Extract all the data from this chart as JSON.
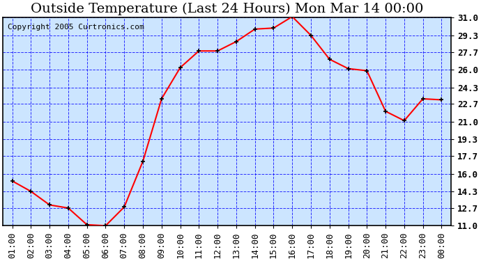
{
  "title": "Outside Temperature (Last 24 Hours) Mon Mar 14 00:00",
  "copyright": "Copyright 2005 Curtronics.com",
  "x_labels": [
    "01:00",
    "02:00",
    "03:00",
    "04:00",
    "05:00",
    "06:00",
    "07:00",
    "08:00",
    "09:00",
    "10:00",
    "11:00",
    "12:00",
    "13:00",
    "14:00",
    "15:00",
    "16:00",
    "17:00",
    "18:00",
    "19:00",
    "20:00",
    "21:00",
    "22:00",
    "23:00",
    "00:00"
  ],
  "y_values": [
    15.3,
    14.3,
    13.0,
    12.7,
    11.1,
    11.0,
    12.8,
    17.2,
    23.2,
    26.2,
    27.8,
    27.8,
    28.7,
    29.9,
    30.0,
    31.1,
    29.3,
    27.0,
    26.1,
    25.9,
    22.0,
    21.1,
    23.2,
    23.1
  ],
  "y_ticks": [
    11.0,
    12.7,
    14.3,
    16.0,
    17.7,
    19.3,
    21.0,
    22.7,
    24.3,
    26.0,
    27.7,
    29.3,
    31.0
  ],
  "y_min": 11.0,
  "y_max": 31.0,
  "line_color": "red",
  "marker": "+",
  "marker_color": "black",
  "bg_color": "#cce5ff",
  "plot_bg_color": "#cce5ff",
  "grid_color": "blue",
  "title_fontsize": 14,
  "copyright_fontsize": 8,
  "tick_fontsize": 9,
  "axis_label_color": "black",
  "border_color": "black"
}
